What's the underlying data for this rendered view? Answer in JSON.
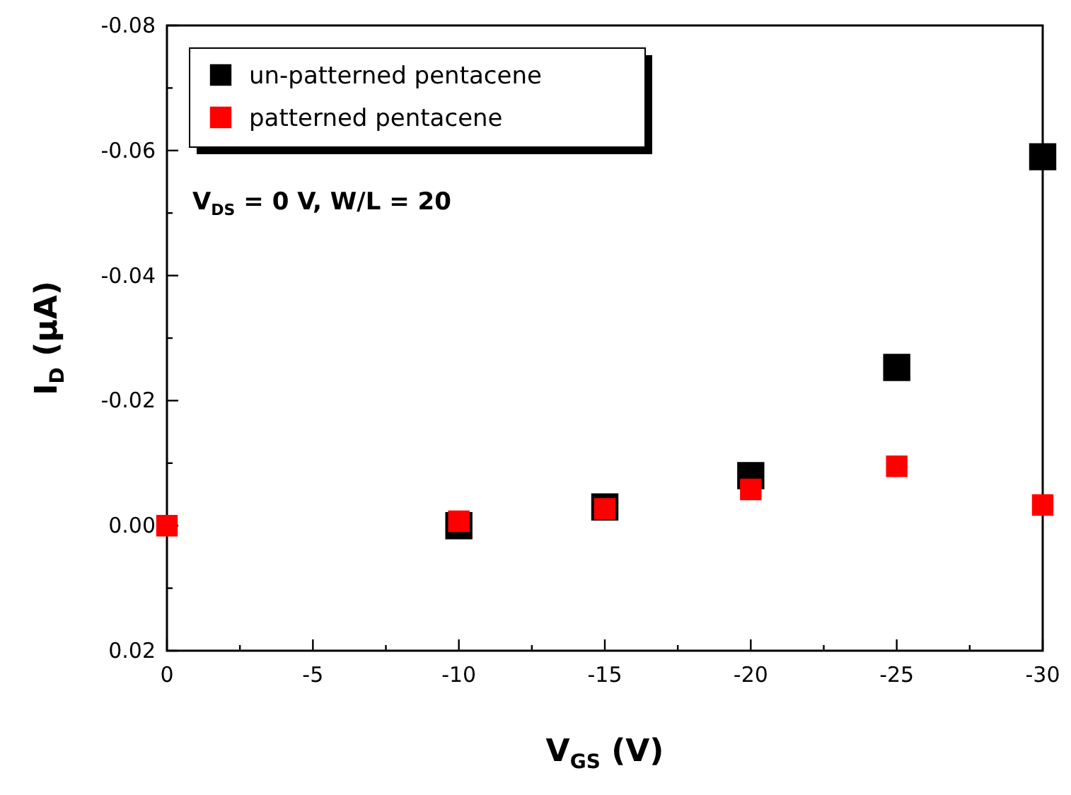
{
  "chart_data": {
    "type": "scatter",
    "xlabel": "V$_{GS}$ (V)",
    "ylabel": "I$_{D}$ (μA)",
    "x": [
      0,
      -10,
      -15,
      -20,
      -25,
      -30
    ],
    "series": [
      {
        "name": "un-patterned pentacene",
        "color": "#000000",
        "values": [
          null,
          0.0,
          -0.003,
          -0.008,
          -0.0253,
          -0.059
        ]
      },
      {
        "name": "patterned pentacene",
        "color": "#ff0000",
        "values": [
          0.0,
          -0.0007,
          -0.0027,
          -0.0058,
          -0.0095,
          -0.0033
        ]
      }
    ],
    "xlim": [
      0,
      -30
    ],
    "xticks": [
      0,
      {
        "value": -2.5,
        "label": null
      },
      -5,
      {
        "value": -7.5,
        "label": null
      },
      -10,
      {
        "value": -12.5,
        "label": null
      },
      -15,
      {
        "value": -17.5,
        "label": null
      },
      -20,
      {
        "value": -22.5,
        "label": null
      },
      -25,
      {
        "value": -27.5,
        "label": null
      },
      -30
    ],
    "ylim": [
      0.02,
      -0.08
    ],
    "yticks": [
      0.02,
      {
        "value": 0.01,
        "label": null
      },
      {
        "value": 0,
        "label": "0.00"
      },
      {
        "value": -0.01,
        "label": null
      },
      -0.02,
      {
        "value": -0.03,
        "label": null
      },
      -0.04,
      {
        "value": -0.05,
        "label": null
      },
      -0.06,
      {
        "value": -0.07,
        "label": null
      },
      -0.08
    ],
    "marker": "square",
    "legend": "top left",
    "grid": false,
    "annotations": [
      "V$_{DS}$ = 0 V, W/L = 20"
    ]
  }
}
